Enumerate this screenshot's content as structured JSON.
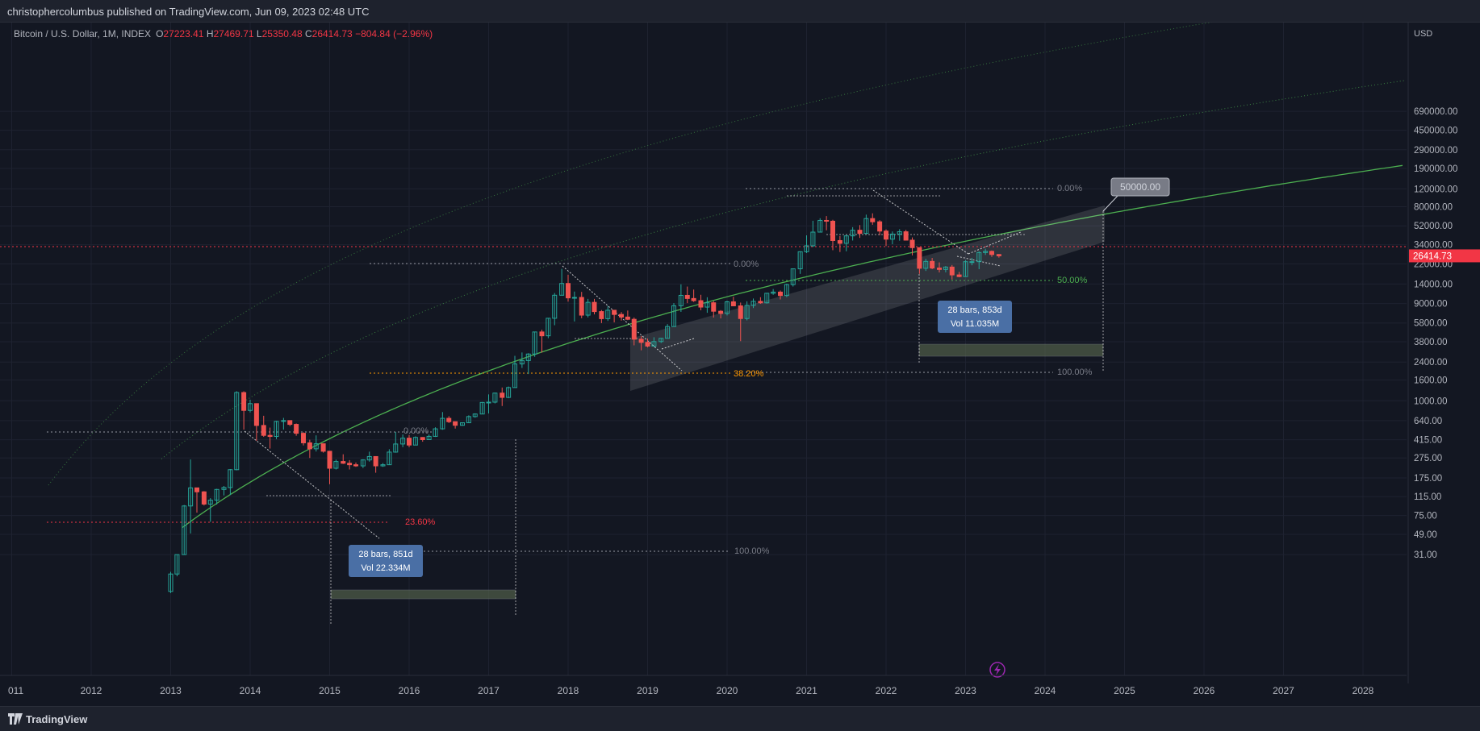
{
  "header": {
    "published": "christophercolumbus published on TradingView.com, Jun 09, 2023 02:48 UTC"
  },
  "legend": {
    "symbol": "Bitcoin / U.S. Dollar, 1M, INDEX",
    "open_key": "O",
    "open": "27223.41",
    "high_key": "H",
    "high": "27469.71",
    "low_key": "L",
    "low": "25350.48",
    "close_key": "C",
    "close": "26414.73",
    "change": "−804.84 (−2.96%)"
  },
  "footer": {
    "brand": "TradingView",
    "logo_icon": "tradingview-logo-icon"
  },
  "colors": {
    "background": "#131722",
    "up": "#26a69a",
    "down": "#ef5350",
    "green_curve": "#4caf50",
    "price_label": "#f23645",
    "measure_box": "#4a6fa5"
  },
  "chart_data": {
    "type": "candlestick",
    "y_scale": "log",
    "currency": "USD",
    "x_ticks": [
      "011",
      "2012",
      "2013",
      "2014",
      "2015",
      "2016",
      "2017",
      "2018",
      "2019",
      "2020",
      "2021",
      "2022",
      "2023",
      "2024",
      "2025",
      "2026",
      "2027",
      "2028"
    ],
    "y_ticks": [
      "690000.00",
      "450000.00",
      "290000.00",
      "190000.00",
      "120000.00",
      "80000.00",
      "52000.00",
      "34000.00",
      "22000.00",
      "14000.00",
      "9000.00",
      "5800.00",
      "3800.00",
      "2400.00",
      "1600.00",
      "1000.00",
      "640.00",
      "415.00",
      "275.00",
      "175.00",
      "115.00",
      "75.00",
      "49.00",
      "31.00"
    ],
    "last_price": "26414.73",
    "fib_labels": [
      {
        "text": "0.00%",
        "color": "#787b86"
      },
      {
        "text": "23.60%",
        "color": "#f23645"
      },
      {
        "text": "100.00%",
        "color": "#787b86"
      },
      {
        "text": "0.00%",
        "color": "#787b86"
      },
      {
        "text": "38.20%",
        "color": "#ff9800"
      },
      {
        "text": "0.00%",
        "color": "#787b86"
      },
      {
        "text": "50.00%",
        "color": "#4caf50"
      },
      {
        "text": "100.00%",
        "color": "#787b86"
      }
    ],
    "measure_boxes": [
      {
        "bars": "28 bars, 851d",
        "vol": "Vol 22.334M"
      },
      {
        "bars": "28 bars, 853d",
        "vol": "Vol 11.035M"
      }
    ],
    "callout": "50000.00",
    "candles": [
      {
        "t": 2013.0,
        "o": 13.5,
        "h": 21,
        "l": 13,
        "c": 20
      },
      {
        "t": 2013.08,
        "o": 20,
        "h": 31,
        "l": 19,
        "c": 31
      },
      {
        "t": 2013.17,
        "o": 31,
        "h": 95,
        "l": 31,
        "c": 93
      },
      {
        "t": 2013.25,
        "o": 93,
        "h": 266,
        "l": 50,
        "c": 140
      },
      {
        "t": 2013.33,
        "o": 140,
        "h": 140,
        "l": 80,
        "c": 128
      },
      {
        "t": 2013.42,
        "o": 128,
        "h": 130,
        "l": 94,
        "c": 97
      },
      {
        "t": 2013.5,
        "o": 97,
        "h": 111,
        "l": 65,
        "c": 106
      },
      {
        "t": 2013.58,
        "o": 106,
        "h": 137,
        "l": 96,
        "c": 135
      },
      {
        "t": 2013.67,
        "o": 135,
        "h": 146,
        "l": 118,
        "c": 141
      },
      {
        "t": 2013.75,
        "o": 141,
        "h": 214,
        "l": 119,
        "c": 211
      },
      {
        "t": 2013.83,
        "o": 211,
        "h": 1242,
        "l": 208,
        "c": 1205
      },
      {
        "t": 2013.92,
        "o": 1205,
        "h": 1240,
        "l": 522,
        "c": 805
      },
      {
        "t": 2014.0,
        "o": 805,
        "h": 1023,
        "l": 769,
        "c": 938
      },
      {
        "t": 2014.08,
        "o": 938,
        "h": 938,
        "l": 405,
        "c": 573
      },
      {
        "t": 2014.17,
        "o": 573,
        "h": 713,
        "l": 443,
        "c": 458
      },
      {
        "t": 2014.25,
        "o": 458,
        "h": 546,
        "l": 340,
        "c": 447
      },
      {
        "t": 2014.33,
        "o": 447,
        "h": 636,
        "l": 421,
        "c": 628
      },
      {
        "t": 2014.42,
        "o": 628,
        "h": 680,
        "l": 522,
        "c": 640
      },
      {
        "t": 2014.5,
        "o": 640,
        "h": 641,
        "l": 564,
        "c": 587
      },
      {
        "t": 2014.58,
        "o": 587,
        "h": 599,
        "l": 454,
        "c": 480
      },
      {
        "t": 2014.67,
        "o": 480,
        "h": 491,
        "l": 365,
        "c": 387
      },
      {
        "t": 2014.75,
        "o": 387,
        "h": 415,
        "l": 275,
        "c": 338
      },
      {
        "t": 2014.83,
        "o": 338,
        "h": 458,
        "l": 318,
        "c": 379
      },
      {
        "t": 2014.92,
        "o": 379,
        "h": 381,
        "l": 310,
        "c": 320
      },
      {
        "t": 2015.0,
        "o": 320,
        "h": 320,
        "l": 152,
        "c": 218
      },
      {
        "t": 2015.08,
        "o": 218,
        "h": 265,
        "l": 212,
        "c": 254
      },
      {
        "t": 2015.17,
        "o": 254,
        "h": 299,
        "l": 240,
        "c": 244
      },
      {
        "t": 2015.25,
        "o": 244,
        "h": 262,
        "l": 212,
        "c": 236
      },
      {
        "t": 2015.33,
        "o": 236,
        "h": 248,
        "l": 225,
        "c": 230
      },
      {
        "t": 2015.42,
        "o": 230,
        "h": 267,
        "l": 219,
        "c": 263
      },
      {
        "t": 2015.5,
        "o": 263,
        "h": 317,
        "l": 253,
        "c": 284
      },
      {
        "t": 2015.58,
        "o": 284,
        "h": 285,
        "l": 197,
        "c": 230
      },
      {
        "t": 2015.67,
        "o": 230,
        "h": 245,
        "l": 225,
        "c": 236
      },
      {
        "t": 2015.75,
        "o": 236,
        "h": 335,
        "l": 235,
        "c": 314
      },
      {
        "t": 2015.83,
        "o": 314,
        "h": 495,
        "l": 310,
        "c": 377
      },
      {
        "t": 2015.92,
        "o": 377,
        "h": 467,
        "l": 351,
        "c": 430
      },
      {
        "t": 2016.0,
        "o": 430,
        "h": 462,
        "l": 350,
        "c": 368
      },
      {
        "t": 2016.08,
        "o": 368,
        "h": 448,
        "l": 366,
        "c": 437
      },
      {
        "t": 2016.17,
        "o": 437,
        "h": 440,
        "l": 397,
        "c": 416
      },
      {
        "t": 2016.25,
        "o": 416,
        "h": 467,
        "l": 413,
        "c": 448
      },
      {
        "t": 2016.33,
        "o": 448,
        "h": 550,
        "l": 442,
        "c": 531
      },
      {
        "t": 2016.42,
        "o": 531,
        "h": 775,
        "l": 520,
        "c": 673
      },
      {
        "t": 2016.5,
        "o": 673,
        "h": 706,
        "l": 605,
        "c": 624
      },
      {
        "t": 2016.58,
        "o": 624,
        "h": 624,
        "l": 534,
        "c": 575
      },
      {
        "t": 2016.67,
        "o": 575,
        "h": 612,
        "l": 568,
        "c": 609
      },
      {
        "t": 2016.75,
        "o": 609,
        "h": 720,
        "l": 606,
        "c": 700
      },
      {
        "t": 2016.83,
        "o": 700,
        "h": 753,
        "l": 683,
        "c": 742
      },
      {
        "t": 2016.92,
        "o": 742,
        "h": 975,
        "l": 740,
        "c": 963
      },
      {
        "t": 2017.0,
        "o": 963,
        "h": 1154,
        "l": 751,
        "c": 970
      },
      {
        "t": 2017.08,
        "o": 970,
        "h": 1202,
        "l": 943,
        "c": 1190
      },
      {
        "t": 2017.17,
        "o": 1190,
        "h": 1350,
        "l": 889,
        "c": 1080
      },
      {
        "t": 2017.25,
        "o": 1080,
        "h": 1380,
        "l": 1060,
        "c": 1348
      },
      {
        "t": 2017.33,
        "o": 1348,
        "h": 2760,
        "l": 1345,
        "c": 2300
      },
      {
        "t": 2017.42,
        "o": 2300,
        "h": 2980,
        "l": 2100,
        "c": 2480
      },
      {
        "t": 2017.5,
        "o": 2480,
        "h": 2930,
        "l": 1830,
        "c": 2875
      },
      {
        "t": 2017.58,
        "o": 2875,
        "h": 4760,
        "l": 2700,
        "c": 4735
      },
      {
        "t": 2017.67,
        "o": 4735,
        "h": 4980,
        "l": 2970,
        "c": 4340
      },
      {
        "t": 2017.75,
        "o": 4340,
        "h": 6470,
        "l": 4110,
        "c": 6450
      },
      {
        "t": 2017.83,
        "o": 6450,
        "h": 11400,
        "l": 5510,
        "c": 10850
      },
      {
        "t": 2017.92,
        "o": 10850,
        "h": 19700,
        "l": 10800,
        "c": 14150
      },
      {
        "t": 2018.0,
        "o": 14150,
        "h": 17250,
        "l": 9400,
        "c": 10220
      },
      {
        "t": 2018.08,
        "o": 10220,
        "h": 11790,
        "l": 6000,
        "c": 10330
      },
      {
        "t": 2018.17,
        "o": 10330,
        "h": 11700,
        "l": 6450,
        "c": 6920
      },
      {
        "t": 2018.25,
        "o": 6920,
        "h": 9990,
        "l": 6580,
        "c": 9240
      },
      {
        "t": 2018.33,
        "o": 9240,
        "h": 9990,
        "l": 7040,
        "c": 7500
      },
      {
        "t": 2018.42,
        "o": 7500,
        "h": 7770,
        "l": 5780,
        "c": 6390
      },
      {
        "t": 2018.5,
        "o": 6390,
        "h": 8500,
        "l": 6070,
        "c": 7730
      },
      {
        "t": 2018.58,
        "o": 7730,
        "h": 7760,
        "l": 5880,
        "c": 7030
      },
      {
        "t": 2018.67,
        "o": 7030,
        "h": 7420,
        "l": 6120,
        "c": 6630
      },
      {
        "t": 2018.75,
        "o": 6630,
        "h": 7680,
        "l": 6180,
        "c": 6300
      },
      {
        "t": 2018.83,
        "o": 6300,
        "h": 6570,
        "l": 3500,
        "c": 4020
      },
      {
        "t": 2018.92,
        "o": 4020,
        "h": 4310,
        "l": 3130,
        "c": 3740
      },
      {
        "t": 2019.0,
        "o": 3740,
        "h": 4070,
        "l": 3340,
        "c": 3440
      },
      {
        "t": 2019.08,
        "o": 3440,
        "h": 4200,
        "l": 3370,
        "c": 3810
      },
      {
        "t": 2019.17,
        "o": 3810,
        "h": 4130,
        "l": 3690,
        "c": 4100
      },
      {
        "t": 2019.25,
        "o": 4100,
        "h": 5650,
        "l": 4080,
        "c": 5350
      },
      {
        "t": 2019.33,
        "o": 5350,
        "h": 9090,
        "l": 5350,
        "c": 8560
      },
      {
        "t": 2019.42,
        "o": 8560,
        "h": 13880,
        "l": 7450,
        "c": 10820
      },
      {
        "t": 2019.5,
        "o": 10820,
        "h": 13200,
        "l": 9080,
        "c": 10080
      },
      {
        "t": 2019.58,
        "o": 10080,
        "h": 12340,
        "l": 9330,
        "c": 9600
      },
      {
        "t": 2019.67,
        "o": 9600,
        "h": 10960,
        "l": 7720,
        "c": 8300
      },
      {
        "t": 2019.75,
        "o": 8300,
        "h": 10370,
        "l": 7300,
        "c": 9150
      },
      {
        "t": 2019.83,
        "o": 9150,
        "h": 9510,
        "l": 6550,
        "c": 7560
      },
      {
        "t": 2019.92,
        "o": 7560,
        "h": 7750,
        "l": 6430,
        "c": 7190
      },
      {
        "t": 2020.0,
        "o": 7190,
        "h": 9570,
        "l": 6870,
        "c": 9350
      },
      {
        "t": 2020.08,
        "o": 9350,
        "h": 10500,
        "l": 8470,
        "c": 8540
      },
      {
        "t": 2020.17,
        "o": 8540,
        "h": 9190,
        "l": 3850,
        "c": 6410
      },
      {
        "t": 2020.25,
        "o": 6410,
        "h": 9460,
        "l": 6150,
        "c": 8630
      },
      {
        "t": 2020.33,
        "o": 8630,
        "h": 10070,
        "l": 8120,
        "c": 9450
      },
      {
        "t": 2020.42,
        "o": 9450,
        "h": 10380,
        "l": 8930,
        "c": 9140
      },
      {
        "t": 2020.5,
        "o": 9140,
        "h": 11450,
        "l": 8980,
        "c": 11340
      },
      {
        "t": 2020.58,
        "o": 11340,
        "h": 12480,
        "l": 10960,
        "c": 11650
      },
      {
        "t": 2020.67,
        "o": 11650,
        "h": 12070,
        "l": 9870,
        "c": 10780
      },
      {
        "t": 2020.75,
        "o": 10780,
        "h": 14100,
        "l": 10380,
        "c": 13800
      },
      {
        "t": 2020.83,
        "o": 13800,
        "h": 19860,
        "l": 13200,
        "c": 19700
      },
      {
        "t": 2020.92,
        "o": 19700,
        "h": 29300,
        "l": 17570,
        "c": 28990
      },
      {
        "t": 2021.0,
        "o": 28990,
        "h": 41940,
        "l": 28130,
        "c": 33140
      },
      {
        "t": 2021.08,
        "o": 33140,
        "h": 58330,
        "l": 32300,
        "c": 45140
      },
      {
        "t": 2021.17,
        "o": 45140,
        "h": 61780,
        "l": 45050,
        "c": 58800
      },
      {
        "t": 2021.25,
        "o": 58800,
        "h": 64850,
        "l": 47050,
        "c": 57750
      },
      {
        "t": 2021.33,
        "o": 57750,
        "h": 59600,
        "l": 30000,
        "c": 37300
      },
      {
        "t": 2021.42,
        "o": 37300,
        "h": 41330,
        "l": 28800,
        "c": 35040
      },
      {
        "t": 2021.5,
        "o": 35040,
        "h": 42230,
        "l": 29280,
        "c": 41460
      },
      {
        "t": 2021.58,
        "o": 41460,
        "h": 50500,
        "l": 37330,
        "c": 47100
      },
      {
        "t": 2021.67,
        "o": 47100,
        "h": 52920,
        "l": 39600,
        "c": 43820
      },
      {
        "t": 2021.75,
        "o": 43820,
        "h": 67000,
        "l": 43290,
        "c": 61300
      },
      {
        "t": 2021.83,
        "o": 61300,
        "h": 69000,
        "l": 53250,
        "c": 57000
      },
      {
        "t": 2021.92,
        "o": 57000,
        "h": 59100,
        "l": 42000,
        "c": 46200
      },
      {
        "t": 2022.0,
        "o": 46200,
        "h": 47990,
        "l": 33000,
        "c": 38480
      },
      {
        "t": 2022.08,
        "o": 38480,
        "h": 45820,
        "l": 34320,
        "c": 43170
      },
      {
        "t": 2022.17,
        "o": 43170,
        "h": 48220,
        "l": 37170,
        "c": 45510
      },
      {
        "t": 2022.25,
        "o": 45510,
        "h": 47440,
        "l": 37580,
        "c": 37640
      },
      {
        "t": 2022.33,
        "o": 37640,
        "h": 40050,
        "l": 26700,
        "c": 31790
      },
      {
        "t": 2022.42,
        "o": 31790,
        "h": 31990,
        "l": 17600,
        "c": 19940
      },
      {
        "t": 2022.5,
        "o": 19940,
        "h": 24670,
        "l": 18780,
        "c": 23300
      },
      {
        "t": 2022.58,
        "o": 23300,
        "h": 25200,
        "l": 19540,
        "c": 20050
      },
      {
        "t": 2022.67,
        "o": 20050,
        "h": 22790,
        "l": 18150,
        "c": 19430
      },
      {
        "t": 2022.75,
        "o": 19430,
        "h": 20990,
        "l": 18200,
        "c": 20500
      },
      {
        "t": 2022.83,
        "o": 20500,
        "h": 21470,
        "l": 15480,
        "c": 17170
      },
      {
        "t": 2022.92,
        "o": 17170,
        "h": 18370,
        "l": 16270,
        "c": 16540
      },
      {
        "t": 2023.0,
        "o": 16540,
        "h": 23960,
        "l": 16500,
        "c": 23130
      },
      {
        "t": 2023.08,
        "o": 23130,
        "h": 25250,
        "l": 21350,
        "c": 23150
      },
      {
        "t": 2023.17,
        "o": 23150,
        "h": 29200,
        "l": 19550,
        "c": 28470
      },
      {
        "t": 2023.25,
        "o": 28470,
        "h": 31000,
        "l": 26940,
        "c": 29240
      },
      {
        "t": 2023.33,
        "o": 29240,
        "h": 29840,
        "l": 25810,
        "c": 27220
      },
      {
        "t": 2023.42,
        "o": 27223.41,
        "h": 27469.71,
        "l": 25350.48,
        "c": 26414.73
      }
    ]
  }
}
